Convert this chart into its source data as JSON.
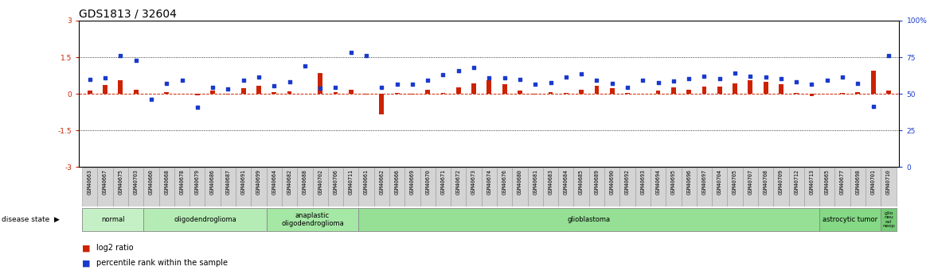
{
  "title": "GDS1813 / 32604",
  "samples": [
    "GSM40663",
    "GSM40667",
    "GSM40675",
    "GSM40703",
    "GSM40660",
    "GSM40668",
    "GSM40678",
    "GSM40679",
    "GSM40686",
    "GSM40687",
    "GSM40691",
    "GSM40699",
    "GSM40664",
    "GSM40682",
    "GSM40688",
    "GSM40702",
    "GSM40706",
    "GSM40711",
    "GSM40661",
    "GSM40662",
    "GSM40666",
    "GSM40669",
    "GSM40670",
    "GSM40671",
    "GSM40672",
    "GSM40673",
    "GSM40674",
    "GSM40676",
    "GSM40680",
    "GSM40681",
    "GSM40683",
    "GSM40684",
    "GSM40685",
    "GSM40689",
    "GSM40690",
    "GSM40692",
    "GSM40693",
    "GSM40694",
    "GSM40695",
    "GSM40696",
    "GSM40697",
    "GSM40704",
    "GSM40705",
    "GSM40707",
    "GSM40708",
    "GSM40709",
    "GSM40712",
    "GSM40713",
    "GSM40665",
    "GSM40677",
    "GSM40698",
    "GSM40701",
    "GSM40710"
  ],
  "log2_ratio": [
    0.12,
    0.35,
    0.55,
    0.18,
    0.02,
    0.08,
    0.02,
    -0.05,
    0.12,
    -0.03,
    0.22,
    0.32,
    0.08,
    0.1,
    0.02,
    0.85,
    0.08,
    0.18,
    -0.02,
    -0.85,
    0.05,
    -0.03,
    0.18,
    0.04,
    0.28,
    0.42,
    0.55,
    0.38,
    0.14,
    -0.04,
    0.08,
    0.05,
    0.18,
    0.32,
    0.22,
    0.05,
    0.02,
    0.12,
    0.25,
    0.18,
    0.3,
    0.3,
    0.42,
    0.55,
    0.48,
    0.38,
    0.05,
    -0.08,
    0.02,
    0.05,
    0.08,
    0.95,
    0.12
  ],
  "percentile_mapped": [
    0.58,
    0.65,
    1.55,
    1.38,
    -0.22,
    0.42,
    0.55,
    -0.55,
    0.28,
    0.2,
    0.55,
    0.68,
    0.32,
    0.48,
    1.15,
    0.22,
    0.28,
    1.68,
    1.58,
    0.25,
    0.38,
    0.38,
    0.55,
    0.78,
    0.95,
    1.08,
    0.65,
    0.65,
    0.58,
    0.38,
    0.45,
    0.68,
    0.82,
    0.55,
    0.42,
    0.28,
    0.55,
    0.45,
    0.52,
    0.62,
    0.72,
    0.62,
    0.85,
    0.72,
    0.68,
    0.62,
    0.48,
    0.38,
    0.55,
    0.68,
    0.42,
    -0.52,
    1.58
  ],
  "disease_groups": [
    {
      "label": "normal",
      "start": 0,
      "end": 4
    },
    {
      "label": "oligodendroglioma",
      "start": 4,
      "end": 12
    },
    {
      "label": "anaplastic\noligodendroglioma",
      "start": 12,
      "end": 18
    },
    {
      "label": "glioblastoma",
      "start": 18,
      "end": 48
    },
    {
      "label": "astrocytic tumor",
      "start": 48,
      "end": 52
    },
    {
      "label": "glio\nneu\nral\nneop",
      "start": 52,
      "end": 53
    }
  ],
  "ylim": [
    -3,
    3
  ],
  "yticks_left": [
    -3,
    -1.5,
    0,
    1.5,
    3
  ],
  "yticks_right": [
    0,
    25,
    50,
    75,
    100
  ],
  "hlines": [
    1.5,
    -1.5
  ],
  "bar_color_red": "#cc2200",
  "bar_color_blue": "#1a3acc",
  "bg_color": "#ffffff",
  "title_fontsize": 10,
  "tick_fontsize": 6.5,
  "disease_color": "#b8f0b8",
  "xticklabel_bg": "#d4d4d4",
  "xticklabel_border": "#999999"
}
